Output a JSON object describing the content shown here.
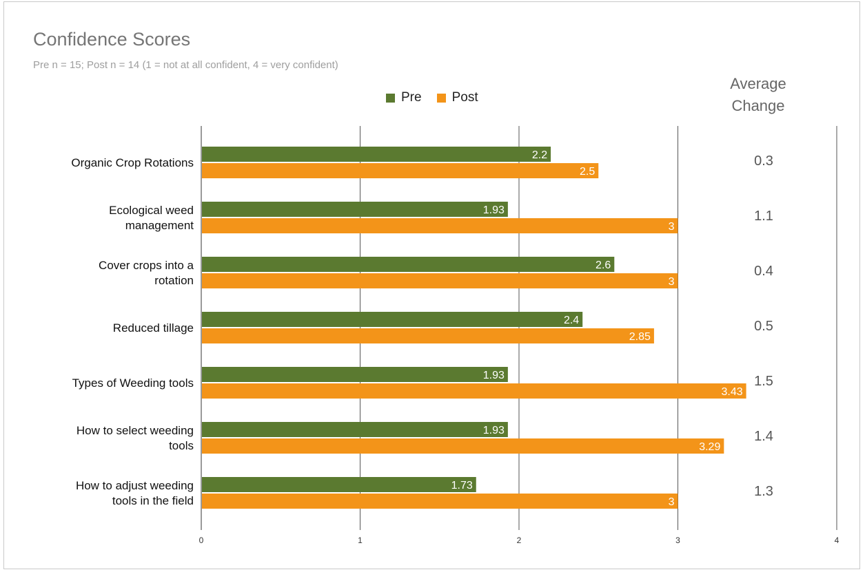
{
  "chart_data": {
    "type": "bar",
    "orientation": "horizontal",
    "title": "Confidence Scores",
    "subtitle": "Pre n = 15; Post n = 14 (1 = not at all confident, 4 = very confident)",
    "categories": [
      [
        "Organic Crop Rotations"
      ],
      [
        "Ecological weed",
        "management"
      ],
      [
        "Cover crops into a",
        "rotation"
      ],
      [
        "Reduced tillage"
      ],
      [
        "Types of Weeding tools"
      ],
      [
        "How to select weeding",
        "tools"
      ],
      [
        "How to adjust weeding",
        "tools in the field"
      ]
    ],
    "series": [
      {
        "name": "Pre",
        "color": "#5b7a30",
        "values": [
          2.2,
          1.93,
          2.6,
          2.4,
          1.93,
          1.93,
          1.73
        ],
        "labels": [
          "2.2",
          "1.93",
          "2.6",
          "2.4",
          "1.93",
          "1.93",
          "1.73"
        ]
      },
      {
        "name": "Post",
        "color": "#f39419",
        "values": [
          2.5,
          3,
          3,
          2.85,
          3.43,
          3.29,
          3
        ],
        "labels": [
          "2.5",
          "3",
          "3",
          "2.85",
          "3.43",
          "3.29",
          "3"
        ]
      }
    ],
    "xlim": [
      0,
      4
    ],
    "xticks": [
      "0",
      "1",
      "2",
      "3",
      "4"
    ],
    "gridlines": true,
    "legend_position": "top",
    "annotation_header": [
      "Average",
      "Change"
    ],
    "annotation_values": [
      "0.3",
      "1.1",
      "0.4",
      "0.5",
      "1.5",
      "1.4",
      "1.3"
    ]
  }
}
